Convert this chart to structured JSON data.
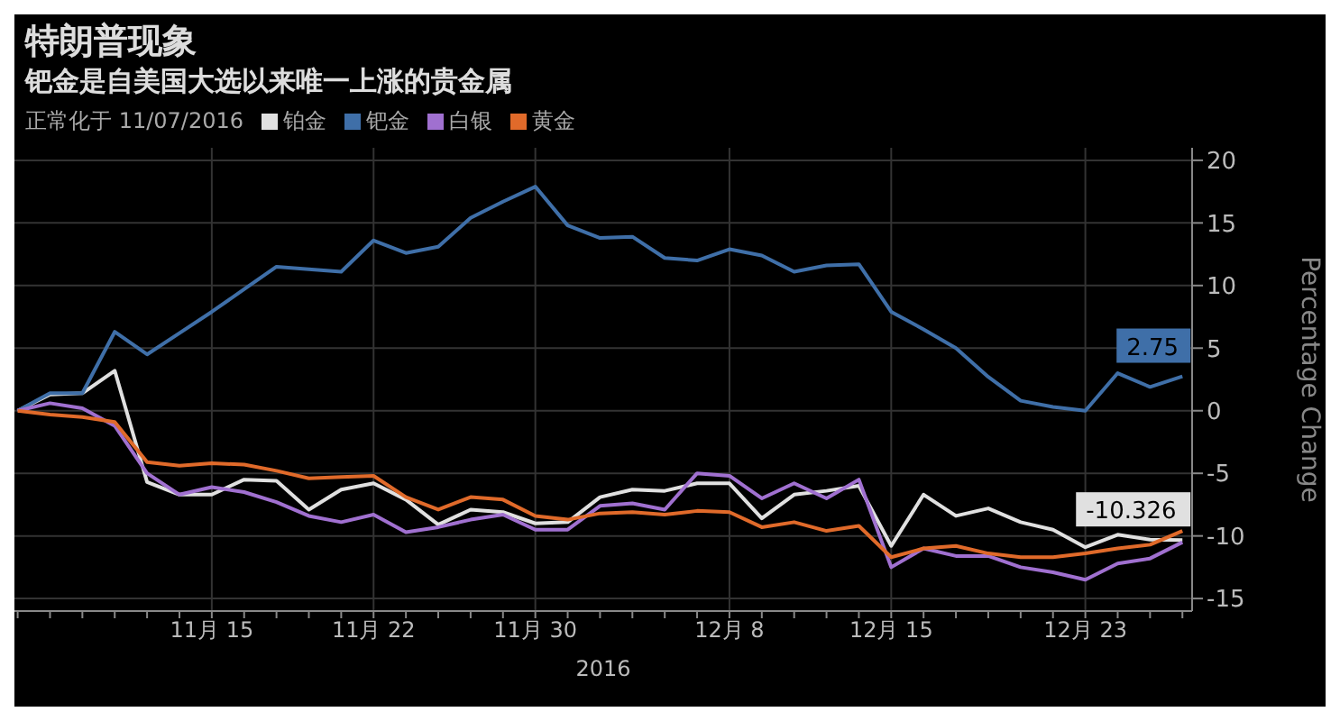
{
  "chart_data": {
    "type": "line",
    "title": "特朗普现象",
    "subtitle": "钯金是自美国大选以来唯一上涨的贵金属",
    "legend_title": "正常化于 11/07/2016",
    "xlabel": "2016",
    "ylabel": "Percentage Change",
    "categories": [
      null,
      null,
      null,
      null,
      null,
      null,
      "11月 15",
      null,
      null,
      null,
      null,
      "11月 22",
      null,
      null,
      null,
      null,
      "11月 30",
      null,
      null,
      null,
      null,
      null,
      "12月 8",
      null,
      null,
      null,
      null,
      "12月 15",
      null,
      null,
      null,
      null,
      null,
      "12月 23",
      null,
      null,
      null
    ],
    "series": [
      {
        "name": "铂金",
        "color": "#e0e0e0",
        "values": [
          0,
          1.3,
          1.4,
          3.2,
          -5.7,
          -6.7,
          -6.7,
          -5.5,
          -5.6,
          -7.9,
          -6.3,
          -5.8,
          -7.1,
          -9.1,
          -7.9,
          -8.1,
          -9.0,
          -8.9,
          -6.9,
          -6.3,
          -6.4,
          -5.8,
          -5.8,
          -8.6,
          -6.7,
          -6.4,
          -6.0,
          -10.8,
          -6.7,
          -8.4,
          -7.8,
          -8.9,
          -9.5,
          -10.9,
          -9.9,
          -10.3,
          -10.326
        ],
        "value_labels": [
          null,
          null,
          null,
          null,
          null,
          null,
          null,
          null,
          null,
          null,
          null,
          null,
          null,
          null,
          null,
          null,
          null,
          null,
          null,
          null,
          null,
          null,
          null,
          null,
          null,
          null,
          null,
          null,
          null,
          null,
          null,
          null,
          null,
          null,
          null,
          null,
          "-10.326"
        ]
      },
      {
        "name": "钯金",
        "color": "#3f6fa8",
        "values": [
          0,
          1.4,
          1.4,
          6.3,
          4.5,
          6.2,
          7.9,
          9.7,
          11.5,
          11.3,
          11.1,
          13.6,
          12.6,
          13.1,
          15.4,
          16.7,
          17.9,
          14.8,
          13.8,
          13.9,
          12.2,
          12.0,
          12.9,
          12.4,
          11.1,
          11.6,
          11.7,
          7.9,
          6.5,
          5.0,
          2.7,
          0.8,
          0.3,
          0.0,
          3.0,
          1.9,
          2.75
        ],
        "value_labels": [
          null,
          null,
          null,
          null,
          null,
          null,
          null,
          null,
          null,
          null,
          null,
          null,
          null,
          null,
          null,
          null,
          null,
          null,
          null,
          null,
          null,
          null,
          null,
          null,
          null,
          null,
          null,
          null,
          null,
          null,
          null,
          null,
          null,
          null,
          null,
          null,
          "2.75"
        ]
      },
      {
        "name": "白银",
        "color": "#a070d0",
        "values": [
          0,
          0.6,
          0.2,
          -1.2,
          -5.0,
          -6.7,
          -6.1,
          -6.5,
          -7.3,
          -8.4,
          -8.9,
          -8.3,
          -9.7,
          -9.3,
          -8.7,
          -8.3,
          -9.5,
          -9.5,
          -7.6,
          -7.4,
          -7.9,
          -5.0,
          -5.2,
          -7.0,
          -5.8,
          -7.0,
          -5.5,
          -12.5,
          -11.0,
          -11.6,
          -11.6,
          -12.5,
          -12.9,
          -13.5,
          -12.2,
          -11.8,
          -10.5
        ]
      },
      {
        "name": "黄金",
        "color": "#e06a2a",
        "values": [
          0,
          -0.3,
          -0.5,
          -0.9,
          -4.1,
          -4.4,
          -4.2,
          -4.3,
          -4.8,
          -5.4,
          -5.3,
          -5.2,
          -6.9,
          -7.9,
          -6.9,
          -7.1,
          -8.4,
          -8.7,
          -8.2,
          -8.1,
          -8.3,
          -8.0,
          -8.1,
          -9.3,
          -8.9,
          -9.6,
          -9.2,
          -11.7,
          -11.0,
          -10.8,
          -11.4,
          -11.7,
          -11.7,
          -11.4,
          -11.0,
          -10.7,
          -9.6
        ]
      }
    ],
    "ylim": [
      -16,
      21
    ],
    "yticks": [
      -15,
      -10,
      -5,
      0,
      5,
      10,
      15,
      20
    ],
    "grid": true,
    "legend": "top left",
    "marker": "none",
    "line_style": "solid"
  }
}
